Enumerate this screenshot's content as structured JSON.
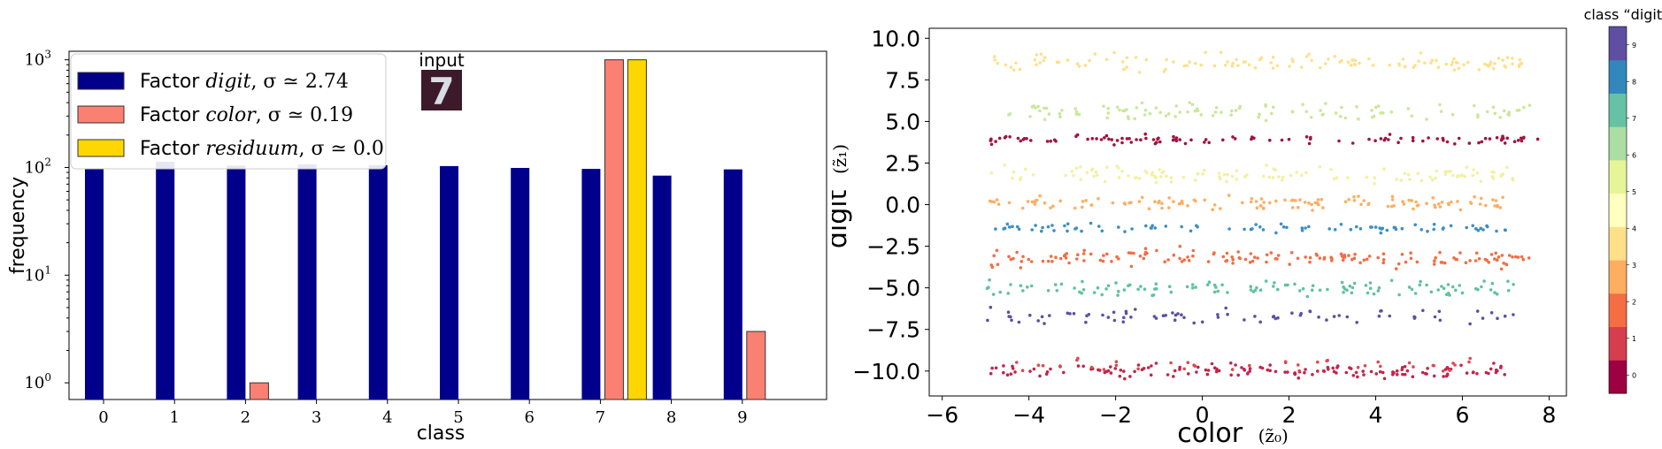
{
  "chart_data": [
    {
      "type": "bar",
      "xlabel": "class",
      "ylabel": "frequency",
      "yscale": "log",
      "ylim": [
        0.7,
        1200
      ],
      "yticks": [
        {
          "value": 1,
          "label": "10",
          "exp": "0"
        },
        {
          "value": 10,
          "label": "10",
          "exp": "1"
        },
        {
          "value": 100,
          "label": "10",
          "exp": "2"
        },
        {
          "value": 1000,
          "label": "10",
          "exp": "3"
        }
      ],
      "categories": [
        "0",
        "1",
        "2",
        "3",
        "4",
        "5",
        "6",
        "7",
        "8",
        "9"
      ],
      "legend_position": "upper-left",
      "series": [
        {
          "prefix": "Factor ",
          "name": "digit",
          "sigma_label": ", σ ≃ 2.74",
          "color": "#00008b",
          "values": [
            98,
            113,
            104,
            107,
            105,
            103,
            99,
            97,
            84,
            96
          ]
        },
        {
          "prefix": "Factor ",
          "name": "color",
          "sigma_label": ", σ ≃ 0.19",
          "color": "#fa8072",
          "values": [
            0,
            0,
            1,
            0,
            0,
            0,
            0,
            1000,
            0,
            3
          ]
        },
        {
          "prefix": "Factor ",
          "name": "residuum",
          "sigma_label": ", σ ≃ 0.0",
          "color": "#ffd700",
          "values": [
            0,
            0,
            0,
            0,
            0,
            0,
            0,
            1000,
            0,
            0
          ]
        }
      ],
      "inset": {
        "label": "input",
        "digit": "7",
        "bg_color": "#3d1a2a",
        "fg_color": "#d9dde4"
      }
    },
    {
      "type": "scatter",
      "xlabel": "color",
      "xlabel_math": "(z̃₀)",
      "ylabel": "digit",
      "ylabel_math": "(z̃₁)",
      "xlim": [
        -6.3,
        8.4
      ],
      "ylim": [
        -11.5,
        10.6
      ],
      "xticks": [
        -6,
        -4,
        -2,
        0,
        2,
        4,
        6,
        8
      ],
      "xtick_labels": [
        "−6",
        "−4",
        "−2",
        "0",
        "2",
        "4",
        "6",
        "8"
      ],
      "yticks": [
        10,
        7.5,
        5,
        2.5,
        0,
        -2.5,
        -5,
        -7.5,
        -10
      ],
      "ytick_labels": [
        "10.0",
        "7.5",
        "5.0",
        "2.5",
        "0.0",
        "−2.5",
        "−5.0",
        "−7.5",
        "−10.0"
      ],
      "colorbar": {
        "title": "class “digit”",
        "labels": [
          "0",
          "1",
          "2",
          "3",
          "4",
          "5",
          "6",
          "7",
          "8",
          "9"
        ],
        "colors": [
          "#9e0142",
          "#d53e4f",
          "#f46d43",
          "#fdae61",
          "#fee08b",
          "#ffffbf",
          "#e6f598",
          "#abdda4",
          "#66c2a5",
          "#3288bd",
          "#5e4fa2"
        ]
      },
      "class_clusters": [
        {
          "class": 0,
          "y_center": -10.0,
          "y_spread": 0.35,
          "x_range": [
            -4.9,
            7.0
          ],
          "color": "#c2254a",
          "count": 150
        },
        {
          "class": 1,
          "y_center": -9.6,
          "y_spread": 0.3,
          "x_range": [
            -4.5,
            6.5
          ],
          "color": "#e0484f",
          "count": 40
        },
        {
          "class": 2,
          "y_center": -3.2,
          "y_spread": 0.45,
          "x_range": [
            -4.9,
            7.6
          ],
          "color": "#f46d43",
          "count": 160
        },
        {
          "class": 3,
          "y_center": 0.1,
          "y_spread": 0.35,
          "x_range": [
            -4.9,
            7.0
          ],
          "color": "#fdae61",
          "count": 130
        },
        {
          "class": 4,
          "y_center": 8.5,
          "y_spread": 0.45,
          "x_range": [
            -5.0,
            7.7
          ],
          "color": "#fee08b",
          "count": 130
        },
        {
          "class": 5,
          "y_center": 1.8,
          "y_spread": 0.4,
          "x_range": [
            -4.9,
            7.2
          ],
          "color": "#f3f0a0",
          "count": 120
        },
        {
          "class": 6,
          "y_center": 5.6,
          "y_spread": 0.4,
          "x_range": [
            -4.5,
            7.7
          ],
          "color": "#c9e89a",
          "count": 110
        },
        {
          "class": 7,
          "y_center": -5.0,
          "y_spread": 0.45,
          "x_range": [
            -5.0,
            7.2
          ],
          "color": "#5fc1a2",
          "count": 120
        },
        {
          "class": 8,
          "y_center": -1.4,
          "y_spread": 0.25,
          "x_range": [
            -4.9,
            7.0
          ],
          "color": "#3b8fc4",
          "count": 90
        },
        {
          "class": 9,
          "y_center": -6.7,
          "y_spread": 0.4,
          "x_range": [
            -5.0,
            7.2
          ],
          "color": "#5e4fa2",
          "count": 80
        },
        {
          "class": 0,
          "y_center": 3.9,
          "y_spread": 0.2,
          "x_range": [
            -5.0,
            7.8
          ],
          "color": "#a3123f",
          "count": 110
        }
      ]
    }
  ]
}
